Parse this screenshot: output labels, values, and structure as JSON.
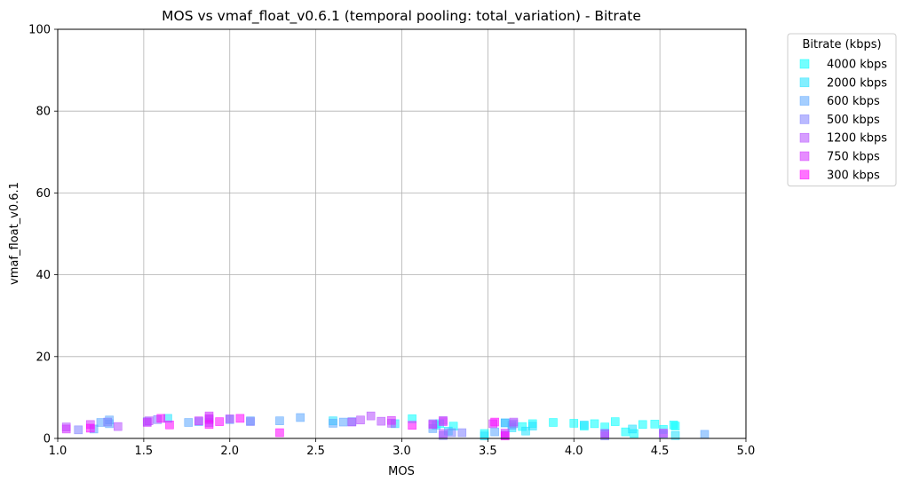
{
  "chart_data": {
    "type": "scatter",
    "title": "MOS vs vmaf_float_v0.6.1 (temporal pooling: total_variation) - Bitrate",
    "xlabel": "MOS",
    "ylabel": "vmaf_float_v0.6.1",
    "xlim": [
      1.0,
      5.0
    ],
    "ylim": [
      0,
      100
    ],
    "xticks": [
      "1.0",
      "1.5",
      "2.0",
      "2.5",
      "3.0",
      "3.5",
      "4.0",
      "4.5",
      "5.0"
    ],
    "yticks": [
      "0",
      "20",
      "40",
      "60",
      "80",
      "100"
    ],
    "grid": true,
    "legend_title": "Bitrate (kbps)",
    "legend_position": "outside-top-right",
    "marker": "square",
    "series": [
      {
        "name": "4000 kbps",
        "color": "#00ffff",
        "points": [
          [
            3.06,
            4.8
          ],
          [
            3.22,
            3.6
          ],
          [
            3.3,
            3.0
          ],
          [
            3.48,
            1.2
          ],
          [
            3.6,
            3.8
          ],
          [
            3.7,
            2.9
          ],
          [
            3.76,
            3.6
          ],
          [
            3.88,
            3.9
          ],
          [
            4.0,
            3.7
          ],
          [
            4.06,
            3.0
          ],
          [
            4.12,
            3.6
          ],
          [
            4.18,
            2.8
          ],
          [
            4.24,
            4.1
          ],
          [
            4.3,
            1.6
          ],
          [
            4.35,
            1.2
          ],
          [
            4.4,
            3.4
          ],
          [
            4.47,
            3.5
          ],
          [
            4.52,
            2.2
          ],
          [
            4.58,
            3.3
          ],
          [
            4.59,
            3.0
          ]
        ]
      },
      {
        "name": "2000 kbps",
        "color": "#1ee1ff",
        "points": [
          [
            1.64,
            4.9
          ],
          [
            2.6,
            4.3
          ],
          [
            2.96,
            3.6
          ],
          [
            3.2,
            3.2
          ],
          [
            3.27,
            1.8
          ],
          [
            3.48,
            0.6
          ],
          [
            3.64,
            2.6
          ],
          [
            3.72,
            1.8
          ],
          [
            3.76,
            3.0
          ],
          [
            4.06,
            3.3
          ],
          [
            4.18,
            1.2
          ],
          [
            4.34,
            2.3
          ],
          [
            4.59,
            0.7
          ]
        ]
      },
      {
        "name": "600 kbps",
        "color": "#5aa5ff",
        "points": [
          [
            1.21,
            2.3
          ],
          [
            1.25,
            3.9
          ],
          [
            1.3,
            4.5
          ],
          [
            1.3,
            3.6
          ],
          [
            1.76,
            3.9
          ],
          [
            1.82,
            4.1
          ],
          [
            2.0,
            4.6
          ],
          [
            2.12,
            4.3
          ],
          [
            2.29,
            4.3
          ],
          [
            2.41,
            5.1
          ],
          [
            2.6,
            3.7
          ],
          [
            2.66,
            4.0
          ],
          [
            2.71,
            4.1
          ],
          [
            3.18,
            2.4
          ],
          [
            3.54,
            1.6
          ],
          [
            3.6,
            3.8
          ],
          [
            3.64,
            3.2
          ],
          [
            4.52,
            1.0
          ],
          [
            4.76,
            1.0
          ]
        ]
      },
      {
        "name": "500 kbps",
        "color": "#8080ff",
        "points": [
          [
            1.12,
            2.1
          ],
          [
            1.29,
            4.0
          ],
          [
            1.52,
            4.1
          ],
          [
            1.58,
            4.6
          ],
          [
            1.88,
            3.9
          ],
          [
            2.12,
            4.1
          ],
          [
            3.18,
            3.6
          ],
          [
            3.24,
            0.7
          ],
          [
            3.29,
            1.4
          ],
          [
            3.35,
            1.4
          ],
          [
            3.6,
            0.8
          ],
          [
            3.65,
            3.6
          ],
          [
            4.18,
            0.6
          ]
        ]
      },
      {
        "name": "1200 kbps",
        "color": "#b44cff",
        "points": [
          [
            1.05,
            2.8
          ],
          [
            1.35,
            2.9
          ],
          [
            1.53,
            4.3
          ],
          [
            1.88,
            4.6
          ],
          [
            2.0,
            4.8
          ],
          [
            2.71,
            4.0
          ],
          [
            2.76,
            4.5
          ],
          [
            2.82,
            5.5
          ],
          [
            2.88,
            4.2
          ],
          [
            2.94,
            3.7
          ],
          [
            3.24,
            4.4
          ],
          [
            3.24,
            1.2
          ],
          [
            3.65,
            4.0
          ]
        ]
      },
      {
        "name": "750 kbps",
        "color": "#d22eff",
        "points": [
          [
            1.05,
            2.3
          ],
          [
            1.19,
            3.4
          ],
          [
            1.52,
            3.9
          ],
          [
            1.82,
            4.3
          ],
          [
            1.88,
            5.5
          ],
          [
            1.88,
            4.9
          ],
          [
            2.94,
            4.4
          ],
          [
            3.18,
            3.4
          ],
          [
            3.24,
            4.1
          ],
          [
            3.53,
            3.6
          ],
          [
            3.6,
            1.3
          ],
          [
            4.18,
            1.2
          ],
          [
            4.52,
            1.3
          ]
        ]
      },
      {
        "name": "300 kbps",
        "color": "#ff00ff",
        "points": [
          [
            1.19,
            2.5
          ],
          [
            1.6,
            4.9
          ],
          [
            1.65,
            3.3
          ],
          [
            1.88,
            3.4
          ],
          [
            1.94,
            4.1
          ],
          [
            2.06,
            4.9
          ],
          [
            2.29,
            1.4
          ],
          [
            3.06,
            3.2
          ],
          [
            3.54,
            4.0
          ],
          [
            3.6,
            0.6
          ]
        ]
      }
    ]
  }
}
